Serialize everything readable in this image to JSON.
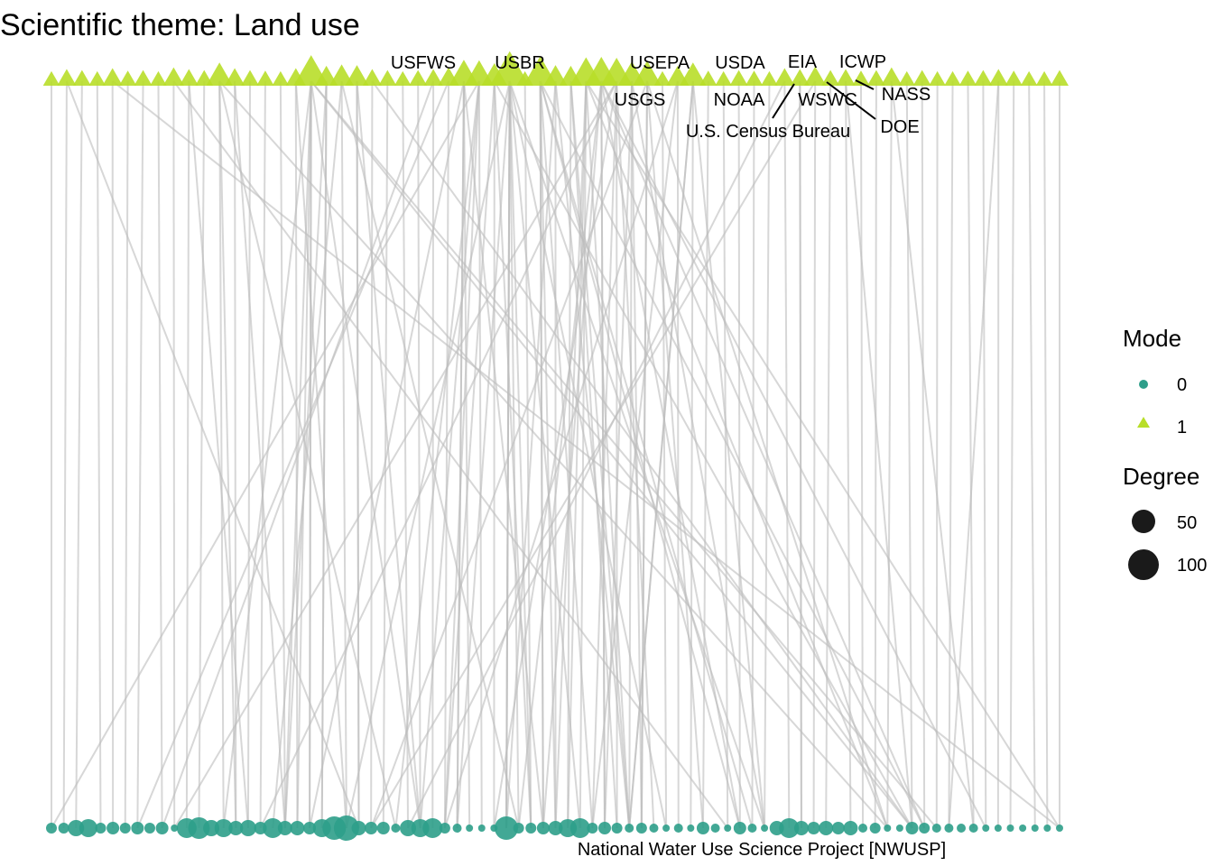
{
  "title": "Scientific theme: Land use",
  "colors": {
    "mode0": "#2e9e8a",
    "mode1": "#b8de29",
    "edge": "#bdbdbd",
    "degree_swatch": "#1a1a1a",
    "leader": "#000000"
  },
  "legend": {
    "mode_title": "Mode",
    "mode_items": [
      {
        "label": "0",
        "shape": "circle"
      },
      {
        "label": "1",
        "shape": "triangle"
      }
    ],
    "degree_title": "Degree",
    "degree_items": [
      {
        "label": "50"
      },
      {
        "label": "100"
      }
    ]
  },
  "labels": {
    "usfws": "USFWS",
    "usbr": "USBR",
    "usepa": "USEPA",
    "usda": "USDA",
    "eia": "EIA",
    "icwp": "ICWP",
    "usgs": "USGS",
    "noaa": "NOAA",
    "wswc": "WSWC",
    "nass": "NASS",
    "census": "U.S. Census Bureau",
    "doe": "DOE",
    "nwusp": "National Water Use Science Project [NWUSP]"
  },
  "network": {
    "mode1_nodes": [
      {
        "d": 8
      },
      {
        "d": 12
      },
      {
        "d": 10
      },
      {
        "d": 8
      },
      {
        "d": 14
      },
      {
        "d": 9
      },
      {
        "d": 10
      },
      {
        "d": 8
      },
      {
        "d": 16
      },
      {
        "d": 12
      },
      {
        "d": 10
      },
      {
        "d": 30
      },
      {
        "d": 14
      },
      {
        "d": 10
      },
      {
        "d": 9
      },
      {
        "d": 8
      },
      {
        "d": 14
      },
      {
        "d": 60
      },
      {
        "d": 20
      },
      {
        "d": 24
      },
      {
        "d": 22
      },
      {
        "d": 12
      },
      {
        "d": 10
      },
      {
        "d": 8
      },
      {
        "d": 10
      },
      {
        "d": 12
      },
      {
        "d": 16
      },
      {
        "d": 40
      },
      {
        "d": 38
      },
      {
        "d": 28
      },
      {
        "d": 80
      },
      {
        "d": 8
      },
      {
        "d": 55
      },
      {
        "d": 22
      },
      {
        "d": 20
      },
      {
        "d": 50
      },
      {
        "d": 52
      },
      {
        "d": 48
      },
      {
        "d": 34
      },
      {
        "d": 36
      },
      {
        "d": 8
      },
      {
        "d": 20
      },
      {
        "d": 30
      },
      {
        "d": 9
      },
      {
        "d": 8
      },
      {
        "d": 10
      },
      {
        "d": 9
      },
      {
        "d": 8
      },
      {
        "d": 14
      },
      {
        "d": 12
      },
      {
        "d": 18
      },
      {
        "d": 10
      },
      {
        "d": 12
      },
      {
        "d": 9
      },
      {
        "d": 10
      },
      {
        "d": 16
      },
      {
        "d": 8
      },
      {
        "d": 10
      },
      {
        "d": 8
      },
      {
        "d": 8
      },
      {
        "d": 9
      },
      {
        "d": 10
      },
      {
        "d": 12
      },
      {
        "d": 9
      },
      {
        "d": 8
      },
      {
        "d": 8
      },
      {
        "d": 10
      }
    ],
    "mode0_nodes": [
      {
        "d": 12
      },
      {
        "d": 12
      },
      {
        "d": 18
      },
      {
        "d": 20
      },
      {
        "d": 12
      },
      {
        "d": 14
      },
      {
        "d": 12
      },
      {
        "d": 14
      },
      {
        "d": 12
      },
      {
        "d": 14
      },
      {
        "d": 8
      },
      {
        "d": 22
      },
      {
        "d": 24
      },
      {
        "d": 18
      },
      {
        "d": 20
      },
      {
        "d": 16
      },
      {
        "d": 18
      },
      {
        "d": 14
      },
      {
        "d": 22
      },
      {
        "d": 16
      },
      {
        "d": 16
      },
      {
        "d": 14
      },
      {
        "d": 20
      },
      {
        "d": 26
      },
      {
        "d": 28
      },
      {
        "d": 16
      },
      {
        "d": 14
      },
      {
        "d": 14
      },
      {
        "d": 10
      },
      {
        "d": 18
      },
      {
        "d": 20
      },
      {
        "d": 22
      },
      {
        "d": 12
      },
      {
        "d": 10
      },
      {
        "d": 8
      },
      {
        "d": 8
      },
      {
        "d": 8
      },
      {
        "d": 26
      },
      {
        "d": 12
      },
      {
        "d": 12
      },
      {
        "d": 14
      },
      {
        "d": 16
      },
      {
        "d": 20
      },
      {
        "d": 22
      },
      {
        "d": 12
      },
      {
        "d": 14
      },
      {
        "d": 12
      },
      {
        "d": 10
      },
      {
        "d": 12
      },
      {
        "d": 10
      },
      {
        "d": 8
      },
      {
        "d": 10
      },
      {
        "d": 8
      },
      {
        "d": 14
      },
      {
        "d": 10
      },
      {
        "d": 8
      },
      {
        "d": 14
      },
      {
        "d": 10
      },
      {
        "d": 8
      },
      {
        "d": 16
      },
      {
        "d": 22
      },
      {
        "d": 16
      },
      {
        "d": 14
      },
      {
        "d": 16
      },
      {
        "d": 14
      },
      {
        "d": 16
      },
      {
        "d": 10
      },
      {
        "d": 12
      },
      {
        "d": 8
      },
      {
        "d": 8
      },
      {
        "d": 14
      },
      {
        "d": 12
      },
      {
        "d": 10
      },
      {
        "d": 10
      },
      {
        "d": 10
      },
      {
        "d": 10
      },
      {
        "d": 8
      },
      {
        "d": 8
      },
      {
        "d": 8
      },
      {
        "d": 8
      },
      {
        "d": 8
      },
      {
        "d": 8
      },
      {
        "d": 8
      }
    ]
  }
}
